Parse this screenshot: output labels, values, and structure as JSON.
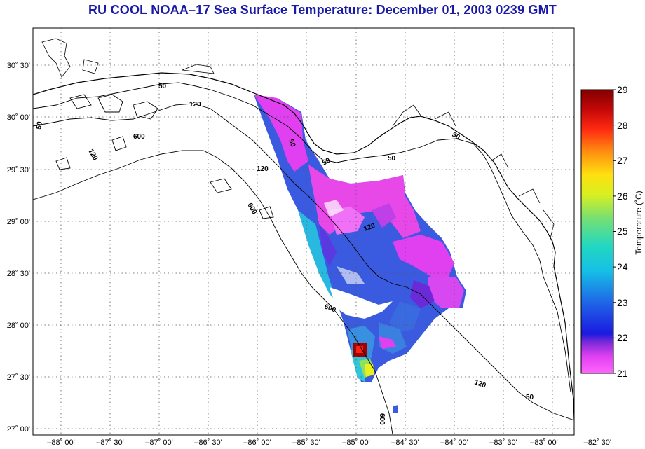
{
  "title": "RU COOL  NOAA–17  Sea Surface Temperature:  December 01, 2003 0239 GMT",
  "map": {
    "lat_labels": [
      "30˚ 30'",
      "30˚ 00'",
      "29˚ 30'",
      "29˚ 00'",
      "28˚ 30'",
      "28˚ 00'",
      "27˚ 30'",
      "27˚ 00'"
    ],
    "lon_labels": [
      "–88˚ 00'",
      "–87˚ 30'",
      "–87˚ 00'",
      "–86˚ 30'",
      "–86˚ 00'",
      "–85˚ 30'",
      "–85˚ 00'",
      "–84˚ 30'",
      "–84˚ 00'",
      "–83˚ 30'",
      "–83˚ 00'",
      "–82˚ 30'"
    ],
    "contour_labels": [
      "50",
      "120",
      "600",
      "50",
      "120",
      "50",
      "50",
      "120",
      "600",
      "600",
      "120",
      "50",
      "50",
      "120",
      "50",
      "600"
    ]
  },
  "colorbar": {
    "label": "Temperature (˚C)",
    "ticks": [
      "29",
      "28",
      "27",
      "26",
      "25",
      "24",
      "23",
      "22",
      "21"
    ],
    "min": 21,
    "max": 29
  },
  "colors": {
    "title": "#1a1aa6",
    "background": "#ffffff"
  }
}
